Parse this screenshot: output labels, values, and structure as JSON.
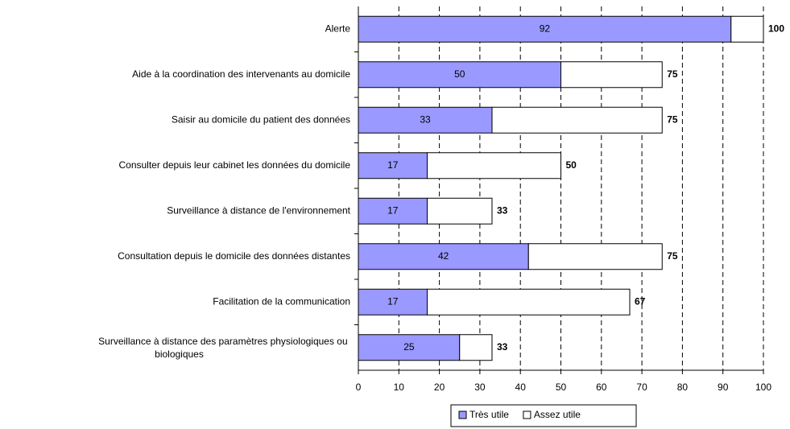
{
  "chart_data": {
    "type": "stacked_bar_horizontal",
    "categories": [
      "Alerte",
      "Aide à la coordination des intervenants au domicile",
      "Saisir au domicile du patient des données",
      "Consulter depuis leur cabinet les données du domicile",
      "Surveillance à distance de l'environnement",
      "Consultation depuis le domicile des données distantes",
      "Facilitation de la communication",
      "Surveillance à distance des paramètres physiologiques ou biologiques"
    ],
    "series": [
      {
        "name": "Très utile",
        "color": "#9999ff",
        "values": [
          92,
          50,
          33,
          17,
          17,
          42,
          17,
          25
        ]
      },
      {
        "name": "Assez utile",
        "color": "#ffffff",
        "values": [
          8,
          25,
          42,
          33,
          16,
          33,
          50,
          8
        ]
      }
    ],
    "totals": [
      100,
      75,
      75,
      50,
      33,
      75,
      67,
      33
    ],
    "xlim": [
      0,
      100
    ],
    "xticks": [
      0,
      10,
      20,
      30,
      40,
      50,
      60,
      70,
      80,
      90,
      100
    ],
    "grid": true,
    "legend": "bottom"
  }
}
